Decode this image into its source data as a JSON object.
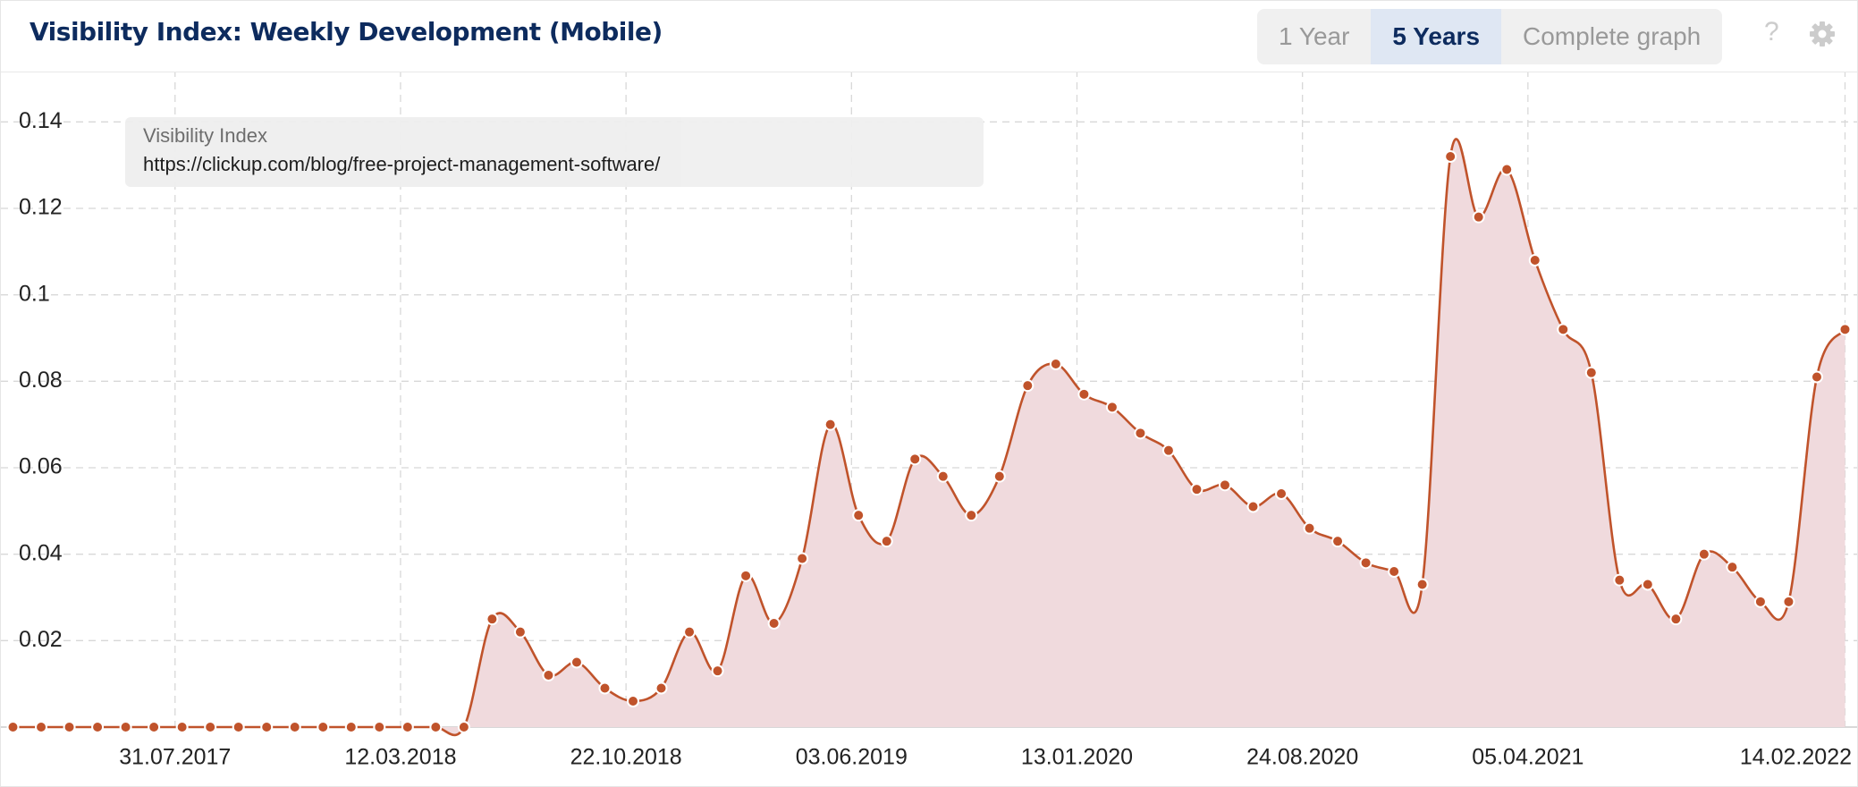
{
  "header": {
    "title": "Visibility Index: Weekly Development (Mobile)",
    "buttons": [
      "1 Year",
      "5 Years",
      "Complete graph"
    ],
    "active_button": 1,
    "help": "?"
  },
  "chart_data": {
    "type": "area",
    "subtitle": "https://clickup.com/blog/free-project-management-software/",
    "x": [
      "2017-02-20",
      "2017-03-20",
      "2017-04-17",
      "2017-05-15",
      "2017-06-12",
      "2017-07-10",
      "2017-08-07",
      "2017-09-04",
      "2017-10-02",
      "2017-10-30",
      "2017-11-27",
      "2017-12-25",
      "2018-01-22",
      "2018-02-19",
      "2018-03-19",
      "2018-04-16",
      "2018-05-14",
      "2018-06-11",
      "2018-07-09",
      "2018-08-06",
      "2018-09-03",
      "2018-10-01",
      "2018-10-29",
      "2018-11-26",
      "2018-12-24",
      "2019-01-21",
      "2019-02-18",
      "2019-03-18",
      "2019-04-15",
      "2019-05-13",
      "2019-06-10",
      "2019-07-08",
      "2019-08-05",
      "2019-09-02",
      "2019-09-30",
      "2019-10-28",
      "2019-11-25",
      "2019-12-23",
      "2020-01-20",
      "2020-02-17",
      "2020-03-16",
      "2020-04-13",
      "2020-05-11",
      "2020-06-08",
      "2020-07-06",
      "2020-08-03",
      "2020-08-31",
      "2020-09-28",
      "2020-10-26",
      "2020-11-23",
      "2020-12-21",
      "2021-01-18",
      "2021-02-15",
      "2021-03-15",
      "2021-04-12",
      "2021-05-10",
      "2021-06-07",
      "2021-07-05",
      "2021-08-02",
      "2021-08-30",
      "2021-09-27",
      "2021-10-25",
      "2021-11-22",
      "2021-12-20",
      "2022-01-17",
      "2022-02-14"
    ],
    "series": [
      {
        "name": "Visibility Index",
        "color": "#c0532b",
        "fill": "#f0dadd",
        "values": [
          0,
          0,
          0,
          0,
          0,
          0,
          0,
          0,
          0,
          0,
          0,
          0,
          0,
          0,
          0,
          0,
          0,
          0.025,
          0.022,
          0.012,
          0.015,
          0.009,
          0.006,
          0.009,
          0.022,
          0.013,
          0.035,
          0.024,
          0.039,
          0.07,
          0.049,
          0.043,
          0.062,
          0.058,
          0.049,
          0.058,
          0.079,
          0.084,
          0.077,
          0.074,
          0.068,
          0.064,
          0.055,
          0.056,
          0.051,
          0.054,
          0.046,
          0.043,
          0.038,
          0.036,
          0.033,
          0.132,
          0.118,
          0.129,
          0.108,
          0.092,
          0.082,
          0.034,
          0.033,
          0.025,
          0.04,
          0.037,
          0.029,
          0.029,
          0.081,
          0.092
        ]
      }
    ],
    "xlim": [
      "2017-02-08",
      "2022-02-26"
    ],
    "xticks": [
      {
        "value": "2017-07-31",
        "label": "31.07.2017"
      },
      {
        "value": "2018-03-12",
        "label": "12.03.2018"
      },
      {
        "value": "2018-10-22",
        "label": "22.10.2018"
      },
      {
        "value": "2019-06-03",
        "label": "03.06.2019"
      },
      {
        "value": "2020-01-13",
        "label": "13.01.2020"
      },
      {
        "value": "2020-08-24",
        "label": "24.08.2020"
      },
      {
        "value": "2021-04-05",
        "label": "05.04.2021"
      },
      {
        "value": "2022-02-14",
        "label": "14.02.2022"
      }
    ],
    "ylim": [
      0,
      0.15
    ],
    "yticks": [
      0.02,
      0.04,
      0.06,
      0.08,
      0.1,
      0.12,
      0.14
    ],
    "grid": true
  }
}
